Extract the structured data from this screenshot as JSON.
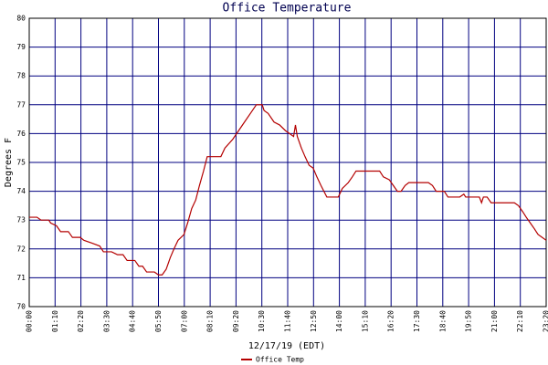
{
  "chart_data": {
    "type": "line",
    "title": "Office Temperature",
    "xlabel": "12/17/19 (EDT)",
    "ylabel": "Degrees F",
    "x": [
      0,
      21,
      32,
      53,
      58,
      74,
      85,
      106,
      117,
      138,
      148,
      170,
      191,
      201,
      223,
      239,
      254,
      265,
      286,
      297,
      307,
      318,
      339,
      350,
      360,
      371,
      382,
      392,
      403,
      419,
      429,
      440,
      451,
      461,
      472,
      482,
      498,
      519,
      530,
      551,
      567,
      583,
      599,
      615,
      631,
      636,
      647,
      663,
      678,
      694,
      705,
      716,
      721,
      726,
      737,
      747,
      758,
      769,
      779,
      790,
      806,
      837,
      848,
      864,
      875,
      885,
      912,
      949,
      959,
      975,
      986,
      997,
      1007,
      1018,
      1028,
      1060,
      1081,
      1092,
      1102,
      1124,
      1134,
      1166,
      1177,
      1182,
      1219,
      1225,
      1230,
      1240,
      1251,
      1314,
      1325,
      1336,
      1346,
      1357,
      1368,
      1378,
      1389,
      1400
    ],
    "series": [
      {
        "name": "Office Temp",
        "color": "#b40000",
        "values": [
          73.1,
          73.1,
          73.0,
          73.0,
          72.9,
          72.8,
          72.6,
          72.6,
          72.4,
          72.4,
          72.3,
          72.2,
          72.1,
          71.9,
          71.9,
          71.8,
          71.8,
          71.6,
          71.6,
          71.4,
          71.4,
          71.2,
          71.2,
          71.1,
          71.1,
          71.3,
          71.7,
          72.0,
          72.3,
          72.5,
          72.9,
          73.4,
          73.7,
          74.2,
          74.7,
          75.2,
          75.2,
          75.2,
          75.5,
          75.8,
          76.1,
          76.4,
          76.7,
          77.0,
          77.0,
          76.8,
          76.7,
          76.4,
          76.3,
          76.1,
          76.0,
          75.9,
          76.3,
          75.9,
          75.5,
          75.2,
          74.9,
          74.8,
          74.5,
          74.2,
          73.8,
          73.8,
          74.1,
          74.3,
          74.5,
          74.7,
          74.7,
          74.7,
          74.5,
          74.4,
          74.2,
          74.0,
          74.0,
          74.2,
          74.3,
          74.3,
          74.3,
          74.2,
          74.0,
          74.0,
          73.8,
          73.8,
          73.9,
          73.8,
          73.8,
          73.6,
          73.8,
          73.8,
          73.6,
          73.6,
          73.5,
          73.3,
          73.1,
          72.9,
          72.7,
          72.5,
          72.4,
          72.3
        ]
      }
    ],
    "xlim": [
      0,
      1400
    ],
    "xticks": [
      {
        "value": 0,
        "label": "00:00"
      },
      {
        "value": 70,
        "label": "01:10"
      },
      {
        "value": 140,
        "label": "02:20"
      },
      {
        "value": 210,
        "label": "03:30"
      },
      {
        "value": 280,
        "label": "04:40"
      },
      {
        "value": 350,
        "label": "05:50"
      },
      {
        "value": 420,
        "label": "07:00"
      },
      {
        "value": 490,
        "label": "08:10"
      },
      {
        "value": 560,
        "label": "09:20"
      },
      {
        "value": 630,
        "label": "10:30"
      },
      {
        "value": 700,
        "label": "11:40"
      },
      {
        "value": 770,
        "label": "12:50"
      },
      {
        "value": 840,
        "label": "14:00"
      },
      {
        "value": 910,
        "label": "15:10"
      },
      {
        "value": 980,
        "label": "16:20"
      },
      {
        "value": 1050,
        "label": "17:30"
      },
      {
        "value": 1120,
        "label": "18:40"
      },
      {
        "value": 1190,
        "label": "19:50"
      },
      {
        "value": 1260,
        "label": "21:00"
      },
      {
        "value": 1330,
        "label": "22:10"
      },
      {
        "value": 1400,
        "label": "23:20"
      }
    ],
    "ylim": [
      70,
      80
    ],
    "yticks": [
      70,
      71,
      72,
      73,
      74,
      75,
      76,
      77,
      78,
      79,
      80
    ],
    "grid": true,
    "grid_color": "#000080"
  }
}
